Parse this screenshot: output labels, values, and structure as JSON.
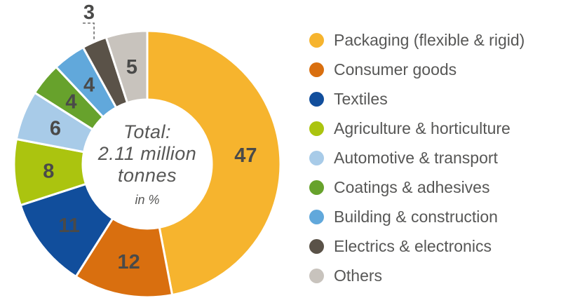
{
  "chart_data": {
    "type": "pie",
    "subtype": "donut",
    "unit": "%",
    "total_value": 100,
    "center_label": {
      "line1": "Total:",
      "line2": "2.11 million",
      "line3": "tonnes",
      "note": "in %"
    },
    "legend_position": "right",
    "series": [
      {
        "label": "Packaging (flexible & rigid)",
        "value": 47,
        "color": "#F6B42E"
      },
      {
        "label": "Consumer goods",
        "value": 12,
        "color": "#D96F0F"
      },
      {
        "label": "Textiles",
        "value": 11,
        "color": "#114E9C"
      },
      {
        "label": "Agriculture & horticulture",
        "value": 8,
        "color": "#ABC40F"
      },
      {
        "label": "Automotive & transport",
        "value": 6,
        "color": "#A8CBE8"
      },
      {
        "label": "Coatings & adhesives",
        "value": 4,
        "color": "#67A22C"
      },
      {
        "label": "Building & construction",
        "value": 4,
        "color": "#61A8DB"
      },
      {
        "label": "Electrics & electronics",
        "value": 3,
        "color": "#5A5248",
        "label_outside": true
      },
      {
        "label": "Others",
        "value": 5,
        "color": "#C8C3BD"
      }
    ],
    "value_label_color": "#4a4a49",
    "text_color": "#575756",
    "connector_color": "#6e6e6e"
  }
}
